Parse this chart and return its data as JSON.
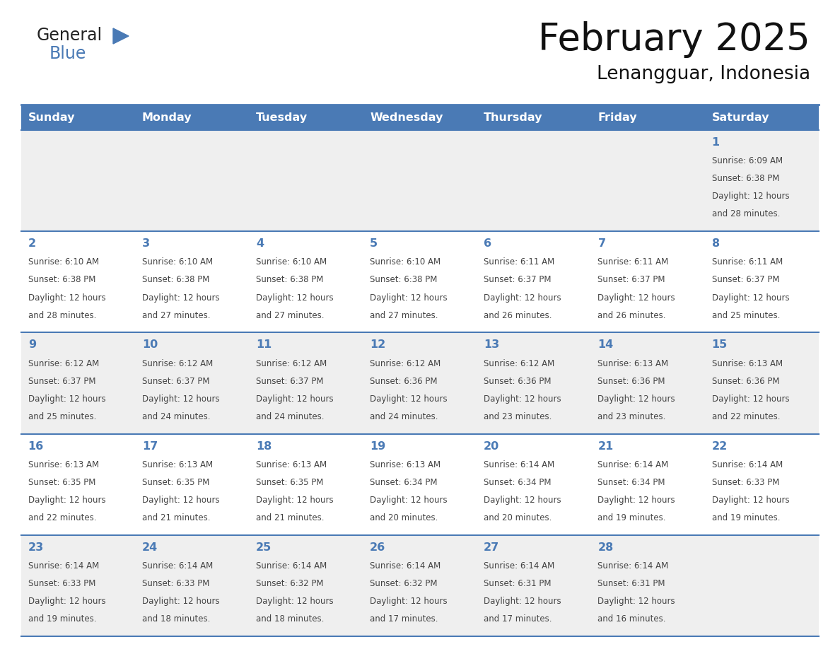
{
  "title": "February 2025",
  "subtitle": "Lenangguar, Indonesia",
  "header_color": "#4a7ab5",
  "header_text_color": "#ffffff",
  "day_names": [
    "Sunday",
    "Monday",
    "Tuesday",
    "Wednesday",
    "Thursday",
    "Friday",
    "Saturday"
  ],
  "bg_color": "#ffffff",
  "cell_bg_row0": "#f0f0f0",
  "cell_bg_row1": "#ffffff",
  "cell_bg_row2": "#f0f0f0",
  "cell_bg_row3": "#ffffff",
  "cell_bg_row4": "#f0f0f0",
  "border_color": "#4a7ab5",
  "day_num_color": "#4a7ab5",
  "text_color": "#444444",
  "logo_general_color": "#222222",
  "logo_blue_color": "#4a7ab5",
  "calendar_data": [
    [
      null,
      null,
      null,
      null,
      null,
      null,
      {
        "day": 1,
        "sunrise": "6:09 AM",
        "sunset": "6:38 PM",
        "daylight": "12 hours and 28 minutes."
      }
    ],
    [
      {
        "day": 2,
        "sunrise": "6:10 AM",
        "sunset": "6:38 PM",
        "daylight": "12 hours and 28 minutes."
      },
      {
        "day": 3,
        "sunrise": "6:10 AM",
        "sunset": "6:38 PM",
        "daylight": "12 hours and 27 minutes."
      },
      {
        "day": 4,
        "sunrise": "6:10 AM",
        "sunset": "6:38 PM",
        "daylight": "12 hours and 27 minutes."
      },
      {
        "day": 5,
        "sunrise": "6:10 AM",
        "sunset": "6:38 PM",
        "daylight": "12 hours and 27 minutes."
      },
      {
        "day": 6,
        "sunrise": "6:11 AM",
        "sunset": "6:37 PM",
        "daylight": "12 hours and 26 minutes."
      },
      {
        "day": 7,
        "sunrise": "6:11 AM",
        "sunset": "6:37 PM",
        "daylight": "12 hours and 26 minutes."
      },
      {
        "day": 8,
        "sunrise": "6:11 AM",
        "sunset": "6:37 PM",
        "daylight": "12 hours and 25 minutes."
      }
    ],
    [
      {
        "day": 9,
        "sunrise": "6:12 AM",
        "sunset": "6:37 PM",
        "daylight": "12 hours and 25 minutes."
      },
      {
        "day": 10,
        "sunrise": "6:12 AM",
        "sunset": "6:37 PM",
        "daylight": "12 hours and 24 minutes."
      },
      {
        "day": 11,
        "sunrise": "6:12 AM",
        "sunset": "6:37 PM",
        "daylight": "12 hours and 24 minutes."
      },
      {
        "day": 12,
        "sunrise": "6:12 AM",
        "sunset": "6:36 PM",
        "daylight": "12 hours and 24 minutes."
      },
      {
        "day": 13,
        "sunrise": "6:12 AM",
        "sunset": "6:36 PM",
        "daylight": "12 hours and 23 minutes."
      },
      {
        "day": 14,
        "sunrise": "6:13 AM",
        "sunset": "6:36 PM",
        "daylight": "12 hours and 23 minutes."
      },
      {
        "day": 15,
        "sunrise": "6:13 AM",
        "sunset": "6:36 PM",
        "daylight": "12 hours and 22 minutes."
      }
    ],
    [
      {
        "day": 16,
        "sunrise": "6:13 AM",
        "sunset": "6:35 PM",
        "daylight": "12 hours and 22 minutes."
      },
      {
        "day": 17,
        "sunrise": "6:13 AM",
        "sunset": "6:35 PM",
        "daylight": "12 hours and 21 minutes."
      },
      {
        "day": 18,
        "sunrise": "6:13 AM",
        "sunset": "6:35 PM",
        "daylight": "12 hours and 21 minutes."
      },
      {
        "day": 19,
        "sunrise": "6:13 AM",
        "sunset": "6:34 PM",
        "daylight": "12 hours and 20 minutes."
      },
      {
        "day": 20,
        "sunrise": "6:14 AM",
        "sunset": "6:34 PM",
        "daylight": "12 hours and 20 minutes."
      },
      {
        "day": 21,
        "sunrise": "6:14 AM",
        "sunset": "6:34 PM",
        "daylight": "12 hours and 19 minutes."
      },
      {
        "day": 22,
        "sunrise": "6:14 AM",
        "sunset": "6:33 PM",
        "daylight": "12 hours and 19 minutes."
      }
    ],
    [
      {
        "day": 23,
        "sunrise": "6:14 AM",
        "sunset": "6:33 PM",
        "daylight": "12 hours and 19 minutes."
      },
      {
        "day": 24,
        "sunrise": "6:14 AM",
        "sunset": "6:33 PM",
        "daylight": "12 hours and 18 minutes."
      },
      {
        "day": 25,
        "sunrise": "6:14 AM",
        "sunset": "6:32 PM",
        "daylight": "12 hours and 18 minutes."
      },
      {
        "day": 26,
        "sunrise": "6:14 AM",
        "sunset": "6:32 PM",
        "daylight": "12 hours and 17 minutes."
      },
      {
        "day": 27,
        "sunrise": "6:14 AM",
        "sunset": "6:31 PM",
        "daylight": "12 hours and 17 minutes."
      },
      {
        "day": 28,
        "sunrise": "6:14 AM",
        "sunset": "6:31 PM",
        "daylight": "12 hours and 16 minutes."
      },
      null
    ]
  ],
  "row_bg_colors": [
    "#efefef",
    "#ffffff",
    "#efefef",
    "#ffffff",
    "#efefef"
  ]
}
